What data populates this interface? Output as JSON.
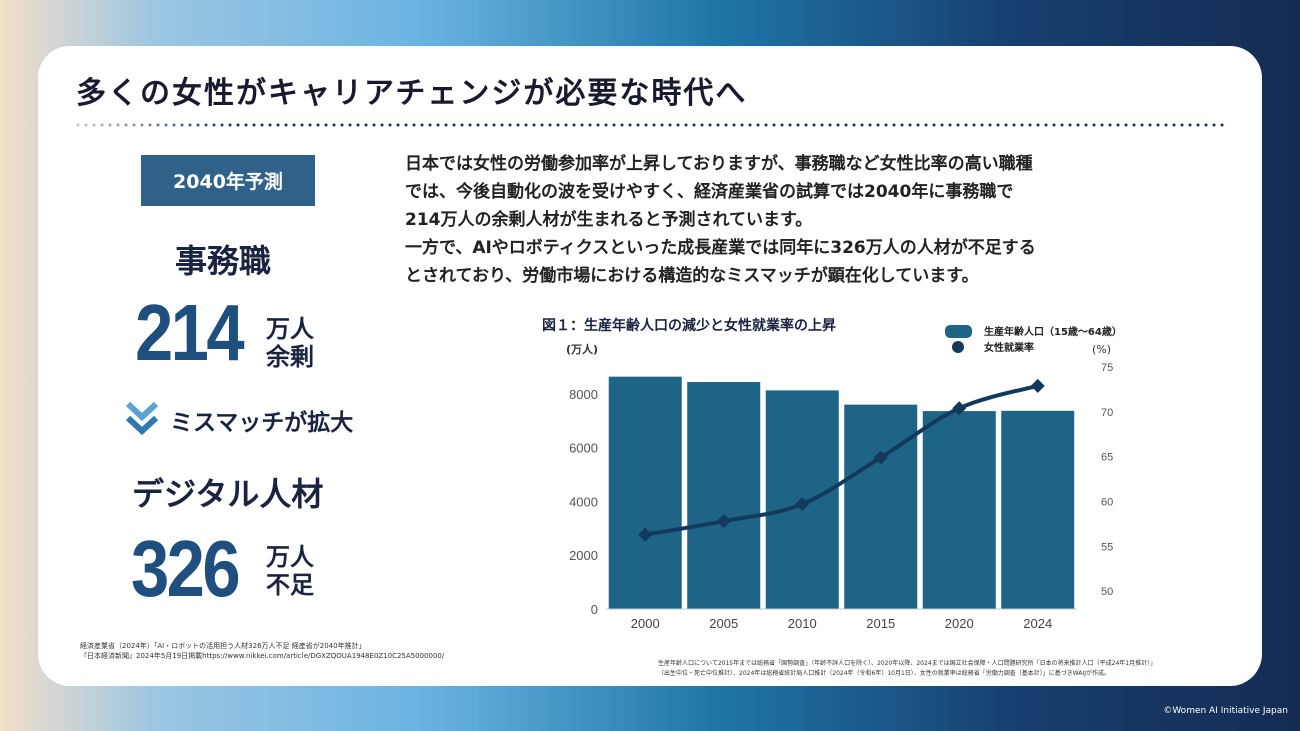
{
  "slide": {
    "title": "多くの女性がキャリアチェンジが必要な時代へ",
    "copyright": "©Women AI Initiative Japan"
  },
  "left_panel": {
    "badge": "2040年予測",
    "clerical": {
      "label": "事務職",
      "number": "214",
      "unit_line1": "万人",
      "unit_line2": "余剰"
    },
    "mismatch_label": "ミスマッチが拡大",
    "digital": {
      "label": "デジタル人材",
      "number": "326",
      "unit_line1": "万人",
      "unit_line2": "不足"
    }
  },
  "body": {
    "line1": "日本では女性の労働参加率が上昇しておりますが、事務職など女性比率の高い職種",
    "line2": "では、今後自動化の波を受けやすく、経済産業省の試算では2040年に事務職で",
    "line3": "214万人の余剰人材が生まれると予測されています。",
    "line4": "一方で、AIやロボティクスといった成長産業では同年に326万人の人材が不足する",
    "line5": "とされており、労働市場における構造的なミスマッチが顕在化しています。"
  },
  "sources": {
    "left_line1": "経済産業省（2024年）「AI・ロボットの活用担う人材326万人不足 経産省が2040年推計」",
    "left_line2": "『日本経済新聞』2024年5月19日掲載https://www.nikkei.com/article/DGXZQOUA1948E0Z10C25A5000000/",
    "right_line1": "生産年齢人口について2015年までは総務省「国勢調査」（年齢不詳人口を除く）、2020年以降、2024までは国立社会保障・人口問題研究所「日本の将来推計人口（平成24年1月推計）」",
    "right_line2": "（出生中位・死亡中位推計）、2024年は総務省統計局人口推計（2024年（令和6年）10月1日）、女性の就業率は総務省「労働力調査（基本計）」に基づきWAIJが作成。"
  },
  "chart_data": {
    "type": "bar",
    "title": "図１：生産年齢人口の減少と女性就業率の上昇",
    "categories": [
      "2000",
      "2005",
      "2010",
      "2015",
      "2020",
      "2024"
    ],
    "ylabel": "(万人)",
    "y2label": "(%)",
    "ylim": [
      0,
      9000
    ],
    "y2lim": [
      48,
      75
    ],
    "yticks": [
      0,
      2000,
      4000,
      6000,
      8000
    ],
    "y2ticks": [
      50,
      55,
      60,
      65,
      70,
      75
    ],
    "grid": false,
    "legend_position": "top-right",
    "series": [
      {
        "name": "生産年齢人口（15歳〜64歳）",
        "type": "bar",
        "axis": "left",
        "color": "#1d6487",
        "values": [
          8640,
          8440,
          8130,
          7600,
          7360,
          7370
        ]
      },
      {
        "name": "女性就業率",
        "type": "line",
        "axis": "right",
        "color": "#133a5c",
        "values": [
          56.3,
          57.8,
          59.7,
          64.9,
          70.4,
          72.9
        ]
      }
    ]
  }
}
